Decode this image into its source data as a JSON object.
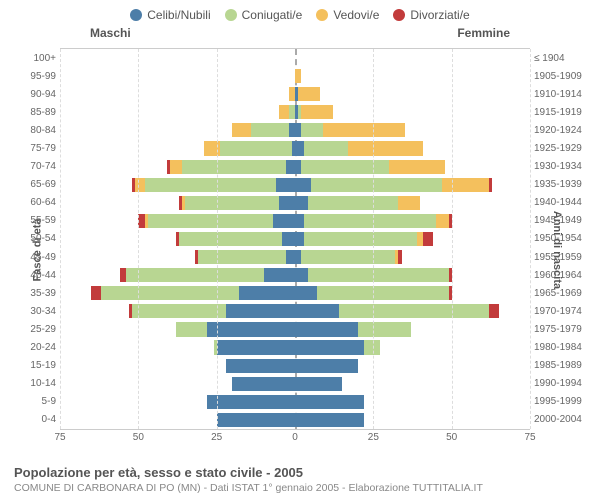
{
  "legend": {
    "items": [
      {
        "label": "Celibi/Nubili",
        "color": "#4d7ea8"
      },
      {
        "label": "Coniugati/e",
        "color": "#b8d692"
      },
      {
        "label": "Vedovi/e",
        "color": "#f4c05d"
      },
      {
        "label": "Divorziati/e",
        "color": "#c23b3b"
      }
    ]
  },
  "titles": {
    "male": "Maschi",
    "female": "Femmine"
  },
  "ylabels": {
    "left": "Fasce di età",
    "right": "Anni di nascita"
  },
  "footer": {
    "line1": "Popolazione per età, sesso e stato civile - 2005",
    "line2": "COMUNE DI CARBONARA DI PO (MN) - Dati ISTAT 1° gennaio 2005 - Elaborazione TUTTITALIA.IT"
  },
  "chart": {
    "type": "population-pyramid",
    "background_color": "#ffffff",
    "grid_color": "#dddddd",
    "centerline_color": "#aaaaaa",
    "x_max": 75,
    "x_ticks": [
      75,
      50,
      25,
      0,
      25,
      50,
      75
    ],
    "bar_height_ratio": 0.78,
    "colors": {
      "celibi": "#4d7ea8",
      "coniugati": "#b8d692",
      "vedovi": "#f4c05d",
      "divorziati": "#c23b3b"
    },
    "rows": [
      {
        "age": "100+",
        "year": "≤ 1904",
        "m": {
          "c": 0,
          "co": 0,
          "v": 0,
          "d": 0
        },
        "f": {
          "c": 0,
          "co": 0,
          "v": 0,
          "d": 0
        }
      },
      {
        "age": "95-99",
        "year": "1905-1909",
        "m": {
          "c": 0,
          "co": 0,
          "v": 0,
          "d": 0
        },
        "f": {
          "c": 0,
          "co": 0,
          "v": 2,
          "d": 0
        }
      },
      {
        "age": "90-94",
        "year": "1910-1914",
        "m": {
          "c": 0,
          "co": 0,
          "v": 2,
          "d": 0
        },
        "f": {
          "c": 1,
          "co": 0,
          "v": 7,
          "d": 0
        }
      },
      {
        "age": "85-89",
        "year": "1915-1919",
        "m": {
          "c": 0,
          "co": 2,
          "v": 3,
          "d": 0
        },
        "f": {
          "c": 1,
          "co": 1,
          "v": 10,
          "d": 0
        }
      },
      {
        "age": "80-84",
        "year": "1920-1924",
        "m": {
          "c": 2,
          "co": 12,
          "v": 6,
          "d": 0
        },
        "f": {
          "c": 2,
          "co": 7,
          "v": 26,
          "d": 0
        }
      },
      {
        "age": "75-79",
        "year": "1925-1929",
        "m": {
          "c": 1,
          "co": 23,
          "v": 5,
          "d": 0
        },
        "f": {
          "c": 3,
          "co": 14,
          "v": 24,
          "d": 0
        }
      },
      {
        "age": "70-74",
        "year": "1930-1934",
        "m": {
          "c": 3,
          "co": 33,
          "v": 4,
          "d": 1
        },
        "f": {
          "c": 2,
          "co": 28,
          "v": 18,
          "d": 0
        }
      },
      {
        "age": "65-69",
        "year": "1935-1939",
        "m": {
          "c": 6,
          "co": 42,
          "v": 3,
          "d": 1
        },
        "f": {
          "c": 5,
          "co": 42,
          "v": 15,
          "d": 1
        }
      },
      {
        "age": "60-64",
        "year": "1940-1944",
        "m": {
          "c": 5,
          "co": 30,
          "v": 1,
          "d": 1
        },
        "f": {
          "c": 4,
          "co": 29,
          "v": 7,
          "d": 0
        }
      },
      {
        "age": "55-59",
        "year": "1945-1949",
        "m": {
          "c": 7,
          "co": 40,
          "v": 1,
          "d": 2
        },
        "f": {
          "c": 3,
          "co": 42,
          "v": 4,
          "d": 1
        }
      },
      {
        "age": "50-54",
        "year": "1950-1954",
        "m": {
          "c": 4,
          "co": 33,
          "v": 0,
          "d": 1
        },
        "f": {
          "c": 3,
          "co": 36,
          "v": 2,
          "d": 3
        }
      },
      {
        "age": "45-49",
        "year": "1955-1959",
        "m": {
          "c": 3,
          "co": 28,
          "v": 0,
          "d": 1
        },
        "f": {
          "c": 2,
          "co": 30,
          "v": 1,
          "d": 1
        }
      },
      {
        "age": "40-44",
        "year": "1960-1964",
        "m": {
          "c": 10,
          "co": 44,
          "v": 0,
          "d": 2
        },
        "f": {
          "c": 4,
          "co": 45,
          "v": 0,
          "d": 1
        }
      },
      {
        "age": "35-39",
        "year": "1965-1969",
        "m": {
          "c": 18,
          "co": 44,
          "v": 0,
          "d": 3
        },
        "f": {
          "c": 7,
          "co": 42,
          "v": 0,
          "d": 1
        }
      },
      {
        "age": "30-34",
        "year": "1970-1974",
        "m": {
          "c": 22,
          "co": 30,
          "v": 0,
          "d": 1
        },
        "f": {
          "c": 14,
          "co": 48,
          "v": 0,
          "d": 3
        }
      },
      {
        "age": "25-29",
        "year": "1975-1979",
        "m": {
          "c": 28,
          "co": 10,
          "v": 0,
          "d": 0
        },
        "f": {
          "c": 20,
          "co": 17,
          "v": 0,
          "d": 0
        }
      },
      {
        "age": "20-24",
        "year": "1980-1984",
        "m": {
          "c": 25,
          "co": 1,
          "v": 0,
          "d": 0
        },
        "f": {
          "c": 22,
          "co": 5,
          "v": 0,
          "d": 0
        }
      },
      {
        "age": "15-19",
        "year": "1985-1989",
        "m": {
          "c": 22,
          "co": 0,
          "v": 0,
          "d": 0
        },
        "f": {
          "c": 20,
          "co": 0,
          "v": 0,
          "d": 0
        }
      },
      {
        "age": "10-14",
        "year": "1990-1994",
        "m": {
          "c": 20,
          "co": 0,
          "v": 0,
          "d": 0
        },
        "f": {
          "c": 15,
          "co": 0,
          "v": 0,
          "d": 0
        }
      },
      {
        "age": "5-9",
        "year": "1995-1999",
        "m": {
          "c": 28,
          "co": 0,
          "v": 0,
          "d": 0
        },
        "f": {
          "c": 22,
          "co": 0,
          "v": 0,
          "d": 0
        }
      },
      {
        "age": "0-4",
        "year": "2000-2004",
        "m": {
          "c": 25,
          "co": 0,
          "v": 0,
          "d": 0
        },
        "f": {
          "c": 22,
          "co": 0,
          "v": 0,
          "d": 0
        }
      }
    ]
  }
}
